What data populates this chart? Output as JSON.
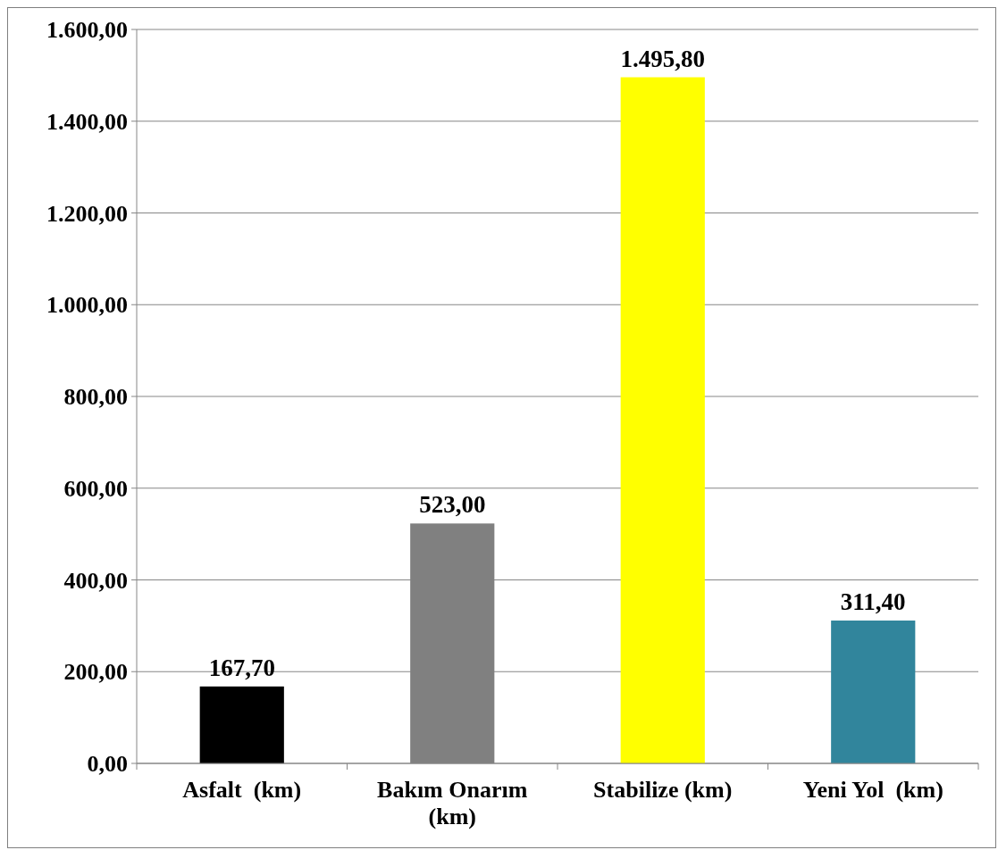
{
  "chart_data": {
    "type": "bar",
    "categories": [
      "Asfalt  (km)",
      "Bakım Onarım (km)",
      "Stabilize (km)",
      "Yeni Yol  (km)"
    ],
    "values": [
      167.7,
      523.0,
      1495.8,
      311.4
    ],
    "colors": [
      "#000000",
      "#808080",
      "#ffff00",
      "#31859c"
    ],
    "value_labels": [
      "167,70",
      "523,00",
      "1.495,80",
      "311,40"
    ],
    "ylim": [
      0,
      1600
    ],
    "yticks": [
      {
        "value": 0,
        "label": "0,00"
      },
      {
        "value": 200,
        "label": "200,00"
      },
      {
        "value": 400,
        "label": "400,00"
      },
      {
        "value": 600,
        "label": "600,00"
      },
      {
        "value": 800,
        "label": "800,00"
      },
      {
        "value": 1000,
        "label": "1.000,00"
      },
      {
        "value": 1200,
        "label": "1.200,00"
      },
      {
        "value": 1400,
        "label": "1.400,00"
      },
      {
        "value": 1600,
        "label": "1.600,00"
      }
    ],
    "grid": "y"
  }
}
